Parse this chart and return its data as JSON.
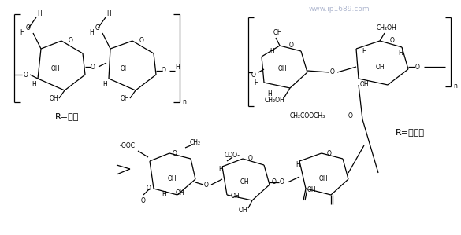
{
  "background_color": "#ffffff",
  "watermark": "www.ip1689.com",
  "watermark_color": "#b0b8d0",
  "label_starch": "R=淠粉",
  "label_xanthan": "R=黄原胶",
  "fig_width": 5.85,
  "fig_height": 2.99,
  "dpi": 100
}
